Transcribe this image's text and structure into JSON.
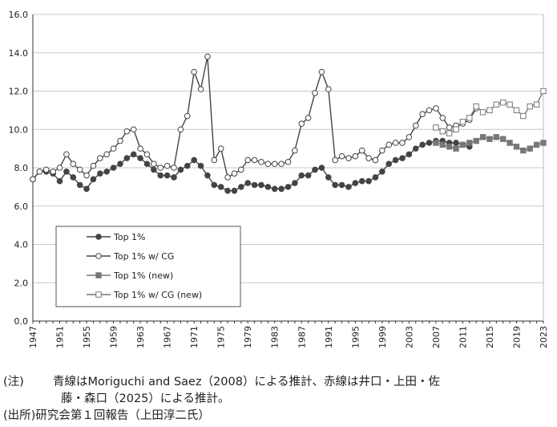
{
  "chart_data": {
    "type": "line",
    "title": "",
    "xlabel": "",
    "ylabel": "",
    "ylim": [
      0,
      16
    ],
    "yticks": [
      "0.0",
      "2.0",
      "4.0",
      "6.0",
      "8.0",
      "10.0",
      "12.0",
      "14.0",
      "16.0"
    ],
    "xlim": [
      1947,
      2023
    ],
    "xticks": [
      "1947",
      "1951",
      "1955",
      "1959",
      "1963",
      "1967",
      "1971",
      "1975",
      "1979",
      "1983",
      "1987",
      "1991",
      "1995",
      "1999",
      "2003",
      "2007",
      "2011",
      "2015",
      "2019",
      "2023"
    ],
    "grid": "horizontal",
    "legend": "lower-left",
    "series": [
      {
        "name": "Top 1%",
        "marker": "filled-circle",
        "color": "#444444",
        "x": [
          1947,
          1948,
          1949,
          1950,
          1951,
          1952,
          1953,
          1954,
          1955,
          1956,
          1957,
          1958,
          1959,
          1960,
          1961,
          1962,
          1963,
          1964,
          1965,
          1966,
          1967,
          1968,
          1969,
          1970,
          1971,
          1972,
          1973,
          1974,
          1975,
          1976,
          1977,
          1978,
          1979,
          1980,
          1981,
          1982,
          1983,
          1984,
          1985,
          1986,
          1987,
          1988,
          1989,
          1990,
          1991,
          1992,
          1993,
          1994,
          1995,
          1996,
          1997,
          1998,
          1999,
          2000,
          2001,
          2002,
          2003,
          2004,
          2005,
          2006,
          2007,
          2008,
          2009,
          2010,
          2011,
          2012
        ],
        "values": [
          7.4,
          7.8,
          7.8,
          7.7,
          7.3,
          7.8,
          7.5,
          7.1,
          6.9,
          7.4,
          7.7,
          7.8,
          8.0,
          8.2,
          8.5,
          8.7,
          8.5,
          8.2,
          7.9,
          7.6,
          7.6,
          7.5,
          7.9,
          8.1,
          8.4,
          8.1,
          7.6,
          7.1,
          7.0,
          6.8,
          6.8,
          7.0,
          7.2,
          7.1,
          7.1,
          7.0,
          6.9,
          6.9,
          7.0,
          7.2,
          7.6,
          7.6,
          7.9,
          8.0,
          7.5,
          7.1,
          7.1,
          7.0,
          7.2,
          7.3,
          7.3,
          7.5,
          7.8,
          8.2,
          8.4,
          8.5,
          8.7,
          9.0,
          9.2,
          9.3,
          9.4,
          9.4,
          9.3,
          9.3,
          9.2,
          9.1
        ]
      },
      {
        "name": "Top 1% w/ CG",
        "marker": "open-circle",
        "color": "#444444",
        "x": [
          1947,
          1948,
          1949,
          1950,
          1951,
          1952,
          1953,
          1954,
          1955,
          1956,
          1957,
          1958,
          1959,
          1960,
          1961,
          1962,
          1963,
          1964,
          1965,
          1966,
          1967,
          1968,
          1969,
          1970,
          1971,
          1972,
          1973,
          1974,
          1975,
          1976,
          1977,
          1978,
          1979,
          1980,
          1981,
          1982,
          1983,
          1984,
          1985,
          1986,
          1987,
          1988,
          1989,
          1990,
          1991,
          1992,
          1993,
          1994,
          1995,
          1996,
          1997,
          1998,
          1999,
          2000,
          2001,
          2002,
          2003,
          2004,
          2005,
          2006,
          2007,
          2008,
          2009,
          2010,
          2011,
          2012,
          2013
        ],
        "values": [
          7.4,
          7.8,
          7.9,
          7.8,
          8.0,
          8.7,
          8.2,
          7.9,
          7.6,
          8.1,
          8.5,
          8.7,
          9.0,
          9.4,
          9.9,
          10.0,
          9.0,
          8.7,
          8.2,
          8.0,
          8.1,
          8.0,
          10.0,
          10.7,
          13.0,
          12.1,
          13.8,
          8.4,
          9.0,
          7.5,
          7.7,
          7.9,
          8.4,
          8.4,
          8.3,
          8.2,
          8.2,
          8.2,
          8.3,
          8.9,
          10.3,
          10.6,
          11.9,
          13.0,
          12.1,
          8.4,
          8.6,
          8.5,
          8.6,
          8.9,
          8.5,
          8.4,
          8.9,
          9.2,
          9.3,
          9.3,
          9.6,
          10.2,
          10.8,
          11.0,
          11.1,
          10.6,
          10.1,
          10.2,
          10.3,
          10.5,
          11.1
        ]
      },
      {
        "name": "Top 1% (new)",
        "marker": "filled-square",
        "color": "#777777",
        "x": [
          2007,
          2008,
          2009,
          2010,
          2011,
          2012,
          2013,
          2014,
          2015,
          2016,
          2017,
          2018,
          2019,
          2020,
          2021,
          2022,
          2023
        ],
        "values": [
          9.3,
          9.2,
          9.1,
          9.0,
          9.2,
          9.3,
          9.4,
          9.6,
          9.5,
          9.6,
          9.5,
          9.3,
          9.1,
          8.9,
          9.0,
          9.2,
          9.3
        ]
      },
      {
        "name": "Top 1% w/ CG (new)",
        "marker": "open-square",
        "color": "#777777",
        "x": [
          2007,
          2008,
          2009,
          2010,
          2011,
          2012,
          2013,
          2014,
          2015,
          2016,
          2017,
          2018,
          2019,
          2020,
          2021,
          2022,
          2023
        ],
        "values": [
          10.1,
          9.9,
          9.8,
          10.0,
          10.4,
          10.6,
          11.2,
          10.9,
          11.0,
          11.3,
          11.4,
          11.3,
          11.0,
          10.7,
          11.2,
          11.3,
          12.0
        ]
      }
    ]
  },
  "notes": {
    "note_label": "(注)",
    "note_line1": "青線はMoriguchi and Saez（2008）による推計、赤線は井口・上田・佐",
    "note_line2": "藤・森口（2025）による推計。",
    "source_label": "(出所)",
    "source_text": "研究会第１回報告（上田淳二氏）"
  }
}
